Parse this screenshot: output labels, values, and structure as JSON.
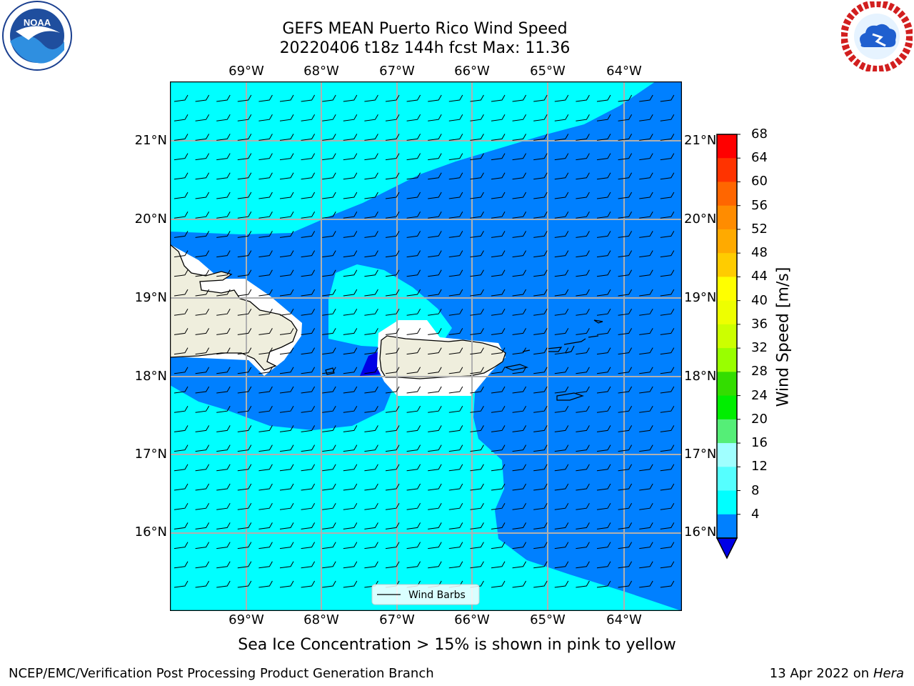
{
  "title": {
    "line1": "GEFS MEAN Puerto Rico Wind Speed",
    "line2": "20220406 t18z 144h fcst   Max: 11.36"
  },
  "logos": {
    "left_org": "NOAA",
    "left_ring_text": "NATIONAL OCEANIC AND ATMOSPHERIC ADMINISTRATION · U.S. DEPARTMENT OF COMMERCE",
    "right_ring_text": "NATIONAL WEATHER SERVICE"
  },
  "map": {
    "lon_labels": [
      "69°W",
      "68°W",
      "67°W",
      "66°W",
      "65°W",
      "64°W"
    ],
    "lat_labels": [
      "21°N",
      "20°N",
      "19°N",
      "18°N",
      "17°N",
      "16°N"
    ],
    "legend_label": "Wind Barbs",
    "colors": {
      "speed_4_8": "#0080ff",
      "speed_8_12": "#00ffff",
      "land": "#efeedd",
      "no_data": "#ffffff",
      "speed_lt_4": "#0000e6",
      "grid": "#b0b0b0"
    }
  },
  "colorbar": {
    "title": "Wind Speed [m/s]",
    "ticks": [
      "68",
      "64",
      "60",
      "56",
      "52",
      "48",
      "44",
      "40",
      "36",
      "32",
      "28",
      "24",
      "20",
      "16",
      "12",
      "8",
      "4"
    ],
    "colors": [
      "#ff0000",
      "#ff3300",
      "#ff6600",
      "#ff8c00",
      "#ffaa00",
      "#ffcc00",
      "#ffff00",
      "#eeff00",
      "#ccff00",
      "#99ff00",
      "#33dd00",
      "#00ee00",
      "#55ee77",
      "#a0ffff",
      "#55ffff",
      "#00ffff",
      "#0080ff"
    ],
    "extend_color": "#0000e6"
  },
  "caption": "Sea Ice Concentration > 15% is shown in pink to yellow",
  "footer": {
    "left": "NCEP/EMC/Verification Post Processing Product Generation Branch",
    "right_date": "13 Apr 2022 on ",
    "right_host": "Hera"
  }
}
